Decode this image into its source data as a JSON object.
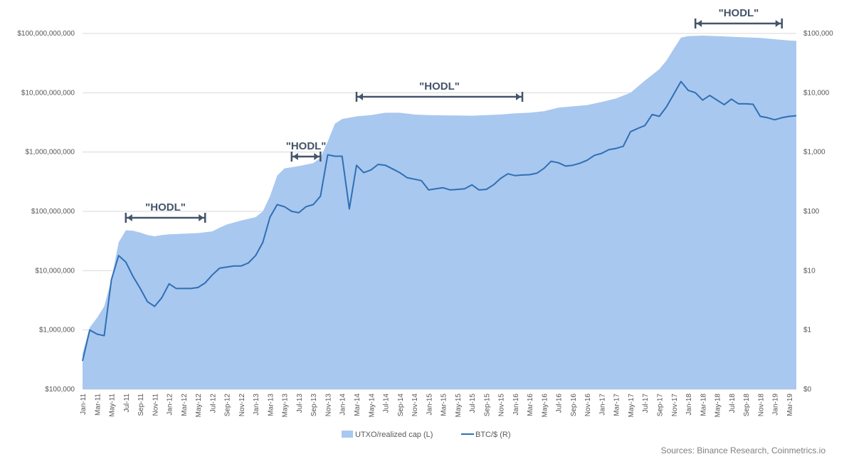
{
  "colors": {
    "area": "#a9c8ef",
    "line": "#2f6fb5",
    "annotation": "#44546a",
    "grid": "#d9d9d9"
  },
  "source": "Sources: Binance Research, Coinmetrics.io",
  "chart_data": {
    "type": "area",
    "scale": "log",
    "grid": "horizontal",
    "legend_position": "bottom",
    "legend": [
      "UTXO/realized cap (L)",
      "BTC/$ (R)"
    ],
    "left_axis": {
      "ticks": [
        "$100,000",
        "$1,000,000",
        "$10,000,000",
        "$100,000,000",
        "$1,000,000,000",
        "$10,000,000,000",
        "$100,000,000,000"
      ],
      "tick_values": [
        100000.0,
        1000000.0,
        10000000.0,
        100000000.0,
        1000000000.0,
        10000000000.0,
        100000000000.0
      ],
      "range": [
        100000.0,
        100000000000.0
      ]
    },
    "right_axis": {
      "ticks": [
        "$0",
        "$1",
        "$10",
        "$100",
        "$1,000",
        "$10,000",
        "$100,000"
      ],
      "tick_values": [
        0.1,
        1,
        10,
        100,
        1000,
        10000,
        100000
      ],
      "range": [
        0.1,
        100000
      ]
    },
    "x_ticks": [
      "Jan-11",
      "Mar-11",
      "May-11",
      "Jul-11",
      "Sep-11",
      "Nov-11",
      "Jan-12",
      "Mar-12",
      "May-12",
      "Jul-12",
      "Sep-12",
      "Nov-12",
      "Jan-13",
      "Mar-13",
      "May-13",
      "Jul-13",
      "Sep-13",
      "Nov-13",
      "Jan-14",
      "Mar-14",
      "May-14",
      "Jul-14",
      "Sep-14",
      "Nov-14",
      "Jan-15",
      "Mar-15",
      "May-15",
      "Jul-15",
      "Sep-15",
      "Nov-15",
      "Jan-16",
      "Mar-16",
      "May-16",
      "Jul-16",
      "Sep-16",
      "Nov-16",
      "Jan-17",
      "Mar-17",
      "May-17",
      "Jul-17",
      "Sep-17",
      "Nov-17",
      "Jan-18",
      "Mar-18",
      "May-18",
      "Jul-18",
      "Sep-18",
      "Nov-18",
      "Jan-19",
      "Mar-19"
    ],
    "series": [
      {
        "name": "UTXO/realized cap (L)",
        "axis": "left",
        "points": [
          [
            "Jan-11",
            400000.0
          ],
          [
            "Feb-11",
            1100000.0
          ],
          [
            "Mar-11",
            1600000.0
          ],
          [
            "Apr-11",
            2500000.0
          ],
          [
            "May-11",
            7000000.0
          ],
          [
            "Jun-11",
            30000000.0
          ],
          [
            "Jul-11",
            48000000.0
          ],
          [
            "Aug-11",
            47000000.0
          ],
          [
            "Sep-11",
            44000000.0
          ],
          [
            "Oct-11",
            40000000.0
          ],
          [
            "Nov-11",
            38000000.0
          ],
          [
            "Dec-11",
            40000000.0
          ],
          [
            "Jan-12",
            41000000.0
          ],
          [
            "Mar-12",
            42000000.0
          ],
          [
            "May-12",
            43000000.0
          ],
          [
            "Jul-12",
            46000000.0
          ],
          [
            "Aug-12",
            53000000.0
          ],
          [
            "Sep-12",
            60000000.0
          ],
          [
            "Nov-12",
            70000000.0
          ],
          [
            "Jan-13",
            80000000.0
          ],
          [
            "Feb-13",
            100000000.0
          ],
          [
            "Mar-13",
            180000000.0
          ],
          [
            "Apr-13",
            400000000.0
          ],
          [
            "May-13",
            530000000.0
          ],
          [
            "Jul-13",
            580000000.0
          ],
          [
            "Sep-13",
            650000000.0
          ],
          [
            "Oct-13",
            800000000.0
          ],
          [
            "Nov-13",
            1500000000.0
          ],
          [
            "Dec-13",
            3000000000.0
          ],
          [
            "Jan-14",
            3600000000.0
          ],
          [
            "Mar-14",
            4000000000.0
          ],
          [
            "May-14",
            4200000000.0
          ],
          [
            "Jul-14",
            4600000000.0
          ],
          [
            "Sep-14",
            4600000000.0
          ],
          [
            "Nov-14",
            4300000000.0
          ],
          [
            "Jan-15",
            4200000000.0
          ],
          [
            "Jul-15",
            4100000000.0
          ],
          [
            "Nov-15",
            4300000000.0
          ],
          [
            "Jan-16",
            4500000000.0
          ],
          [
            "Mar-16",
            4600000000.0
          ],
          [
            "May-16",
            4900000000.0
          ],
          [
            "Jul-16",
            5600000000.0
          ],
          [
            "Sep-16",
            5900000000.0
          ],
          [
            "Nov-16",
            6200000000.0
          ],
          [
            "Jan-17",
            7000000000.0
          ],
          [
            "Mar-17",
            8000000000.0
          ],
          [
            "May-17",
            10000000000.0
          ],
          [
            "Jul-17",
            16000000000.0
          ],
          [
            "Sep-17",
            25000000000.0
          ],
          [
            "Oct-17",
            35000000000.0
          ],
          [
            "Nov-17",
            55000000000.0
          ],
          [
            "Dec-17",
            85000000000.0
          ],
          [
            "Jan-18",
            90000000000.0
          ],
          [
            "Mar-18",
            92000000000.0
          ],
          [
            "May-18",
            90000000000.0
          ],
          [
            "Jul-18",
            88000000000.0
          ],
          [
            "Sep-18",
            86000000000.0
          ],
          [
            "Nov-18",
            84000000000.0
          ],
          [
            "Jan-19",
            80000000000.0
          ],
          [
            "Mar-19",
            76000000000.0
          ],
          [
            "Apr-19",
            75000000000.0
          ]
        ]
      },
      {
        "name": "BTC/$ (R)",
        "axis": "right",
        "points": [
          [
            "Jan-11",
            0.3
          ],
          [
            "Feb-11",
            1.0
          ],
          [
            "Mar-11",
            0.85
          ],
          [
            "Apr-11",
            0.8
          ],
          [
            "May-11",
            7.0
          ],
          [
            "Jun-11",
            18
          ],
          [
            "Jul-11",
            14
          ],
          [
            "Aug-11",
            8
          ],
          [
            "Sep-11",
            5
          ],
          [
            "Oct-11",
            3
          ],
          [
            "Nov-11",
            2.5
          ],
          [
            "Dec-11",
            3.5
          ],
          [
            "Jan-12",
            6
          ],
          [
            "Feb-12",
            5
          ],
          [
            "Mar-12",
            5
          ],
          [
            "Apr-12",
            5
          ],
          [
            "May-12",
            5.2
          ],
          [
            "Jun-12",
            6.2
          ],
          [
            "Jul-12",
            8.5
          ],
          [
            "Aug-12",
            11
          ],
          [
            "Sep-12",
            11.5
          ],
          [
            "Oct-12",
            12
          ],
          [
            "Nov-12",
            12
          ],
          [
            "Dec-12",
            13.5
          ],
          [
            "Jan-13",
            18
          ],
          [
            "Feb-13",
            30
          ],
          [
            "Mar-13",
            80
          ],
          [
            "Apr-13",
            130
          ],
          [
            "May-13",
            120
          ],
          [
            "Jun-13",
            100
          ],
          [
            "Jul-13",
            95
          ],
          [
            "Aug-13",
            120
          ],
          [
            "Sep-13",
            130
          ],
          [
            "Oct-13",
            180
          ],
          [
            "Nov-13",
            900
          ],
          [
            "Dec-13",
            850
          ],
          [
            "Jan-14",
            850
          ],
          [
            "Feb-14",
            110
          ],
          [
            "Mar-14",
            600
          ],
          [
            "Apr-14",
            450
          ],
          [
            "May-14",
            500
          ],
          [
            "Jun-14",
            620
          ],
          [
            "Jul-14",
            600
          ],
          [
            "Aug-14",
            520
          ],
          [
            "Sep-14",
            450
          ],
          [
            "Oct-14",
            370
          ],
          [
            "Nov-14",
            350
          ],
          [
            "Dec-14",
            330
          ],
          [
            "Jan-15",
            230
          ],
          [
            "Feb-15",
            240
          ],
          [
            "Mar-15",
            250
          ],
          [
            "Apr-15",
            230
          ],
          [
            "May-15",
            235
          ],
          [
            "Jun-15",
            240
          ],
          [
            "Jul-15",
            280
          ],
          [
            "Aug-15",
            230
          ],
          [
            "Sep-15",
            235
          ],
          [
            "Oct-15",
            280
          ],
          [
            "Nov-15",
            360
          ],
          [
            "Dec-15",
            430
          ],
          [
            "Jan-16",
            400
          ],
          [
            "Feb-16",
            410
          ],
          [
            "Mar-16",
            415
          ],
          [
            "Apr-16",
            440
          ],
          [
            "May-16",
            530
          ],
          [
            "Jun-16",
            700
          ],
          [
            "Jul-16",
            660
          ],
          [
            "Aug-16",
            580
          ],
          [
            "Sep-16",
            600
          ],
          [
            "Oct-16",
            650
          ],
          [
            "Nov-16",
            730
          ],
          [
            "Dec-16",
            880
          ],
          [
            "Jan-17",
            950
          ],
          [
            "Feb-17",
            1100
          ],
          [
            "Mar-17",
            1150
          ],
          [
            "Apr-17",
            1250
          ],
          [
            "May-17",
            2200
          ],
          [
            "Jun-17",
            2500
          ],
          [
            "Jul-17",
            2800
          ],
          [
            "Aug-17",
            4300
          ],
          [
            "Sep-17",
            4000
          ],
          [
            "Oct-17",
            5800
          ],
          [
            "Nov-17",
            9500
          ],
          [
            "Dec-17",
            15500
          ],
          [
            "Jan-18",
            11000
          ],
          [
            "Feb-18",
            10000
          ],
          [
            "Mar-18",
            7500
          ],
          [
            "Apr-18",
            9000
          ],
          [
            "May-18",
            7500
          ],
          [
            "Jun-18",
            6300
          ],
          [
            "Jul-18",
            7800
          ],
          [
            "Aug-18",
            6500
          ],
          [
            "Sep-18",
            6500
          ],
          [
            "Oct-18",
            6400
          ],
          [
            "Nov-18",
            4000
          ],
          [
            "Dec-18",
            3800
          ],
          [
            "Jan-19",
            3500
          ],
          [
            "Feb-19",
            3800
          ],
          [
            "Mar-19",
            4000
          ],
          [
            "Apr-19",
            4100
          ]
        ]
      }
    ],
    "annotations": [
      {
        "label": "\"HODL\"",
        "from": "Jul-11",
        "to": "Jun-12"
      },
      {
        "label": "\"HODL\"",
        "from": "Jun-13",
        "to": "Oct-13"
      },
      {
        "label": "\"HODL\"",
        "from": "Mar-14",
        "to": "Feb-16"
      },
      {
        "label": "\"HODL\"",
        "from": "Feb-18",
        "to": "Feb-19"
      }
    ]
  }
}
